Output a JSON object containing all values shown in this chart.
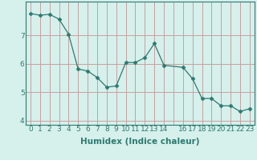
{
  "x": [
    0,
    1,
    2,
    3,
    4,
    5,
    6,
    7,
    8,
    9,
    10,
    11,
    12,
    13,
    14,
    16,
    17,
    18,
    19,
    20,
    21,
    22,
    23
  ],
  "y": [
    7.78,
    7.72,
    7.75,
    7.58,
    7.05,
    5.82,
    5.75,
    5.52,
    5.18,
    5.22,
    6.05,
    6.05,
    6.22,
    6.72,
    5.95,
    5.88,
    5.48,
    4.78,
    4.78,
    4.52,
    4.52,
    4.32,
    4.42
  ],
  "line_color": "#2d7a6f",
  "marker": "D",
  "marker_size": 2.5,
  "bg_color": "#d6f0ec",
  "grid_color": "#c8a0a0",
  "xlabel": "Humidex (Indice chaleur)",
  "xtick_labels": [
    "0",
    "1",
    "2",
    "3",
    "4",
    "5",
    "6",
    "7",
    "8",
    "9",
    "10",
    "11",
    "12",
    "13",
    "14",
    "",
    "16",
    "17",
    "18",
    "19",
    "20",
    "21",
    "22",
    "23"
  ],
  "xtick_positions": [
    0,
    1,
    2,
    3,
    4,
    5,
    6,
    7,
    8,
    9,
    10,
    11,
    12,
    13,
    14,
    15,
    16,
    17,
    18,
    19,
    20,
    21,
    22,
    23
  ],
  "yticks": [
    4,
    5,
    6,
    7
  ],
  "ylim": [
    3.85,
    8.2
  ],
  "xlim": [
    -0.5,
    23.5
  ],
  "tick_fontsize": 6.5,
  "xlabel_fontsize": 7.5
}
